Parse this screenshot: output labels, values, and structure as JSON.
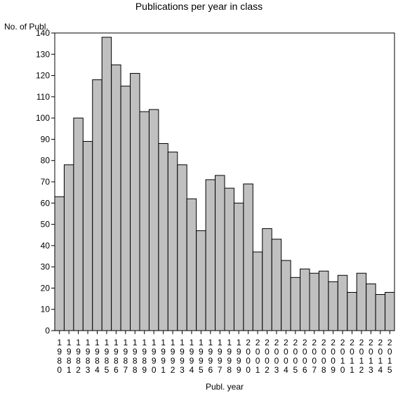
{
  "chart_data": {
    "type": "bar",
    "title": "Publications per year in class",
    "ylabel": "No. of Publ.",
    "xlabel": "Publ. year",
    "ylim": [
      0,
      140
    ],
    "yticks": [
      0,
      10,
      20,
      30,
      40,
      50,
      60,
      70,
      80,
      90,
      100,
      110,
      120,
      130,
      140
    ],
    "categories": [
      "1980",
      "1981",
      "1982",
      "1983",
      "1984",
      "1985",
      "1986",
      "1987",
      "1988",
      "1989",
      "1990",
      "1991",
      "1992",
      "1993",
      "1994",
      "1995",
      "1996",
      "1997",
      "1998",
      "1999",
      "2000",
      "2001",
      "2002",
      "2003",
      "2004",
      "2005",
      "2006",
      "2007",
      "2008",
      "2009",
      "2010",
      "2011",
      "2012",
      "2013",
      "2014",
      "2015"
    ],
    "values": [
      63,
      78,
      100,
      89,
      118,
      138,
      125,
      115,
      121,
      103,
      104,
      88,
      84,
      78,
      62,
      47,
      71,
      73,
      67,
      60,
      69,
      37,
      48,
      43,
      33,
      25,
      29,
      27,
      28,
      23,
      26,
      18,
      27,
      22,
      17,
      18
    ],
    "bar_color": "#c0c0c0",
    "grid": false,
    "legend": "none"
  }
}
